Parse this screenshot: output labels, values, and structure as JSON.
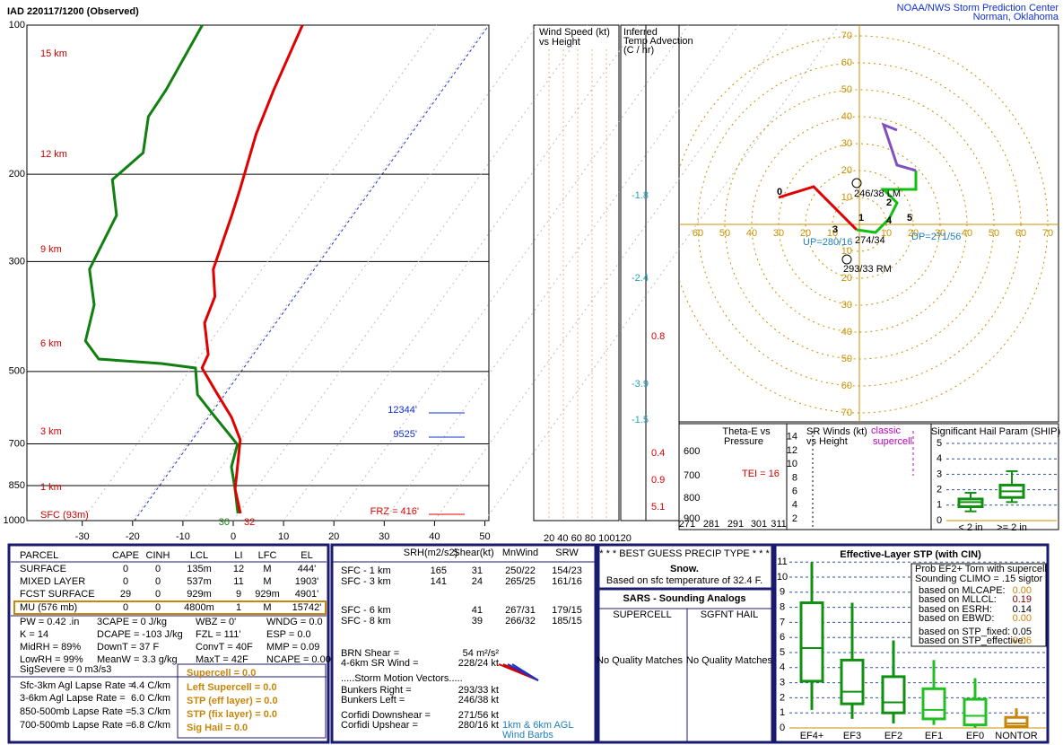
{
  "header": {
    "title": "IAD  220117/1200  (Observed)",
    "org": "NOAA/NWS Storm Prediction Center",
    "place": "Norman, Oklahoma"
  },
  "skewt": {
    "pressure_ticks": [
      100,
      200,
      300,
      500,
      700,
      850,
      1000
    ],
    "temp_ticks": [
      -30,
      -20,
      -10,
      0,
      10,
      20,
      30,
      40,
      50
    ],
    "height_labels": [
      "15 km",
      "12 km",
      "9 km",
      "6 km",
      "3 km",
      "1 km",
      "SFC (93m)"
    ],
    "temperature": {
      "p": [
        967,
        864,
        779,
        687,
        619,
        546,
        492,
        462,
        399,
        353,
        311,
        242,
        214,
        166,
        135,
        100
      ],
      "t": [
        0.4,
        -4.1,
        -6.8,
        -10.1,
        -15.0,
        -22.1,
        -27.9,
        -28.6,
        -33.8,
        -35.5,
        -39.7,
        -43.7,
        -45.8,
        -50.4,
        -53.2,
        -56.7
      ]
    },
    "dewpoint": {
      "p": [
        967,
        864,
        779,
        702,
        619,
        557,
        492,
        482,
        472,
        434,
        367,
        311,
        242,
        205,
        181,
        153,
        135,
        100
      ],
      "t": [
        -0.1,
        -4.1,
        -8.0,
        -10.0,
        -18.2,
        -25.0,
        -29.2,
        -36.6,
        -49.7,
        -54.9,
        -58.3,
        -64.3,
        -66.6,
        -72.5,
        -70.2,
        -74.3,
        -74.6,
        -76.6
      ]
    },
    "annotations": [
      "12344'",
      "9525'",
      "FRZ = 416'"
    ],
    "surface_labels": [
      "30",
      "32"
    ]
  },
  "wind_panel": {
    "title": [
      "Wind Speed (kt)",
      "vs Height"
    ],
    "scale": "20 40 60 80 100120"
  },
  "advection": {
    "title": [
      "Inferred",
      "Temp Advection",
      "(C / hr)"
    ],
    "values": [
      -1.8,
      -2.4,
      0.8,
      -3.9,
      -1.5,
      0.4,
      0.9,
      5.1
    ]
  },
  "hodograph": {
    "ticks": [
      10,
      20,
      30,
      40,
      50,
      60,
      70
    ],
    "trace": [
      {
        "color": "#e00000",
        "u": [
          -30,
          -17,
          -1
        ],
        "v": [
          10,
          14,
          -2
        ]
      },
      {
        "color": "#10c010",
        "u": [
          -1,
          6,
          11,
          14,
          9,
          21,
          21
        ],
        "v": [
          -2,
          -3,
          2,
          8,
          13,
          13,
          20
        ]
      },
      {
        "color": "#8050c0",
        "u": [
          21,
          14,
          9,
          14
        ],
        "v": [
          20,
          22,
          37,
          35
        ]
      }
    ],
    "labels": [
      "246/38 LM",
      "274/34",
      "UP=280/16",
      "DP=271/56",
      "293/33 RM"
    ],
    "point_labels": [
      "0",
      "1",
      "2",
      "3",
      "4",
      "5"
    ]
  },
  "thetae": {
    "title": [
      "Theta-E vs",
      "Pressure"
    ],
    "yticks": [
      "600",
      "700",
      "800",
      "900"
    ],
    "xticks": [
      "271",
      "281",
      "291",
      "301",
      "311"
    ],
    "tei": "TEI = 16"
  },
  "srwinds": {
    "title": [
      "SR Winds (kt)",
      "vs Height"
    ],
    "yticks": [
      14,
      12,
      10,
      8,
      6,
      4,
      2
    ],
    "labels": [
      "classic",
      "supercell"
    ]
  },
  "ship": {
    "title": "Significant Hail Param (SHIP)",
    "yticks": [
      0,
      1,
      2,
      3,
      4,
      5
    ],
    "categories": [
      "< 2 in",
      ">= 2 in"
    ],
    "boxes": [
      {
        "low": 0.6,
        "q1": 0.9,
        "median": 1.2,
        "q3": 1.4,
        "high": 1.8
      },
      {
        "low": 1.2,
        "q1": 1.5,
        "median": 1.9,
        "q3": 2.3,
        "high": 3.2
      }
    ]
  },
  "parcel": {
    "header": [
      "PARCEL",
      "CAPE",
      "CINH",
      "LCL",
      "LI",
      "LFC",
      "EL"
    ],
    "rows": [
      [
        "SURFACE",
        "0",
        "0",
        "135m",
        "12",
        "M",
        "444'"
      ],
      [
        "MIXED LAYER",
        "0",
        "0",
        "537m",
        "11",
        "M",
        "1903'"
      ],
      [
        "FCST SURFACE",
        "29",
        "0",
        "929m",
        "9",
        "929m",
        "4901'"
      ],
      [
        "MU   (576 mb)",
        "0",
        "0",
        "4800m",
        "1",
        "M",
        "15742'"
      ]
    ]
  },
  "indices": [
    [
      "PW = 0.42 .in",
      "3CAPE = 0 J/kg",
      "WBZ = 0'",
      "WNDG = 0.0"
    ],
    [
      "K = 14",
      "DCAPE = -103 J/kg",
      "FZL = 111'",
      "ESP = 0.0"
    ],
    [
      "MidRH = 89%",
      "DownT = 37 F",
      "ConvT = 40F",
      "MMP = 0.09"
    ],
    [
      "LowRH = 99%",
      "MeanW = 3.3 g/kg",
      "MaxT = 42F",
      "NCAPE = 0.00"
    ],
    [
      "SigSevere = 0 m3/s3"
    ]
  ],
  "lapse": [
    [
      "Sfc-3km Agl Lapse Rate =",
      "4.4 C/km"
    ],
    [
      "3-6km Agl Lapse Rate =",
      "6.0 C/km"
    ],
    [
      "850-500mb Lapse Rate =",
      "5.3 C/km"
    ],
    [
      "700-500mb Lapse Rate =",
      "6.8 C/km"
    ]
  ],
  "composites": [
    "Supercell = 0.0",
    "Left Supercell = 0.0",
    "STP (eff layer) = 0.0",
    "STP (fix layer) = 0.0",
    "Sig Hail = 0.0"
  ],
  "kinematics": {
    "header": [
      "SRH(m2/s2)",
      "Shear(kt)",
      "MnWind",
      "SRW"
    ],
    "rows": [
      {
        "layer": "SFC - 1 km",
        "srh": "165",
        "shear": "31",
        "mnwind": "250/22",
        "srw": "154/23"
      },
      {
        "layer": "SFC - 3 km",
        "srh": "141",
        "shear": "24",
        "mnwind": "265/25",
        "srw": "161/16"
      },
      {
        "layer": "SFC - 6 km",
        "shear": "41",
        "mnwind": "267/31",
        "srw": "179/15"
      },
      {
        "layer": "SFC - 8 km",
        "shear": "39",
        "mnwind": "266/32",
        "srw": "185/15"
      }
    ],
    "misc": [
      [
        "BRN Shear =",
        "54 m²/s²"
      ],
      [
        "4-6km SR Wind =",
        "228/24 kt"
      ],
      [
        ".....Storm Motion Vectors....."
      ],
      [
        "Bunkers Right =",
        "293/33 kt"
      ],
      [
        "Bunkers Left =",
        "246/38 kt"
      ],
      [
        "Corfidi Downshear =",
        "271/56 kt"
      ],
      [
        "Corfidi Upshear =",
        "280/16 kt"
      ]
    ],
    "note": [
      "1km & 6km AGL",
      "Wind Barbs"
    ]
  },
  "precip": {
    "title": "* * * BEST GUESS PRECIP TYPE * * *",
    "type": "Snow.",
    "basis": "Based on sfc temperature of 32.4 F."
  },
  "sars": {
    "title": "SARS - Sounding Analogs",
    "columns": [
      "SUPERCELL",
      "SGFNT HAIL"
    ],
    "matches": [
      "No Quality Matches",
      "No Quality Matches"
    ]
  },
  "stp": {
    "title": "Effective-Layer STP (with CIN)",
    "legend": [
      "Prob EF2+ Torn with supercell",
      "Sounding CLIMO = .15 sigtor"
    ],
    "probs": [
      [
        "based on MLCAPE:",
        "0.00"
      ],
      [
        "based on MLLCL:",
        "0.19"
      ],
      [
        "based on ESRH:",
        "0.14"
      ],
      [
        "based on EBWD:",
        "0.00"
      ],
      [
        "based on STP_fixed:",
        "0.05"
      ],
      [
        "based on STP_effective:",
        "0.06"
      ]
    ],
    "yticks": [
      0,
      1,
      2,
      3,
      4,
      5,
      6,
      7,
      8,
      9,
      10,
      11
    ],
    "categories": [
      "EF4+",
      "EF3",
      "EF2",
      "EF1",
      "EF0",
      "NONTOR"
    ],
    "boxes": [
      {
        "low": 1.2,
        "q1": 3.1,
        "median": 5.3,
        "q3": 8.3,
        "high": 11
      },
      {
        "low": 0.6,
        "q1": 1.6,
        "median": 2.4,
        "q3": 4.5,
        "high": 8.3
      },
      {
        "low": 0.3,
        "q1": 1.0,
        "median": 1.7,
        "q3": 3.4,
        "high": 5.8
      },
      {
        "low": 0.2,
        "q1": 0.6,
        "median": 1.2,
        "q3": 2.6,
        "high": 4.5
      },
      {
        "low": 0.0,
        "q1": 0.2,
        "median": 0.8,
        "q3": 1.9,
        "high": 3.3
      },
      {
        "low": 0.0,
        "q1": 0.1,
        "median": 0.3,
        "q3": 0.7,
        "high": 1.3
      }
    ]
  }
}
